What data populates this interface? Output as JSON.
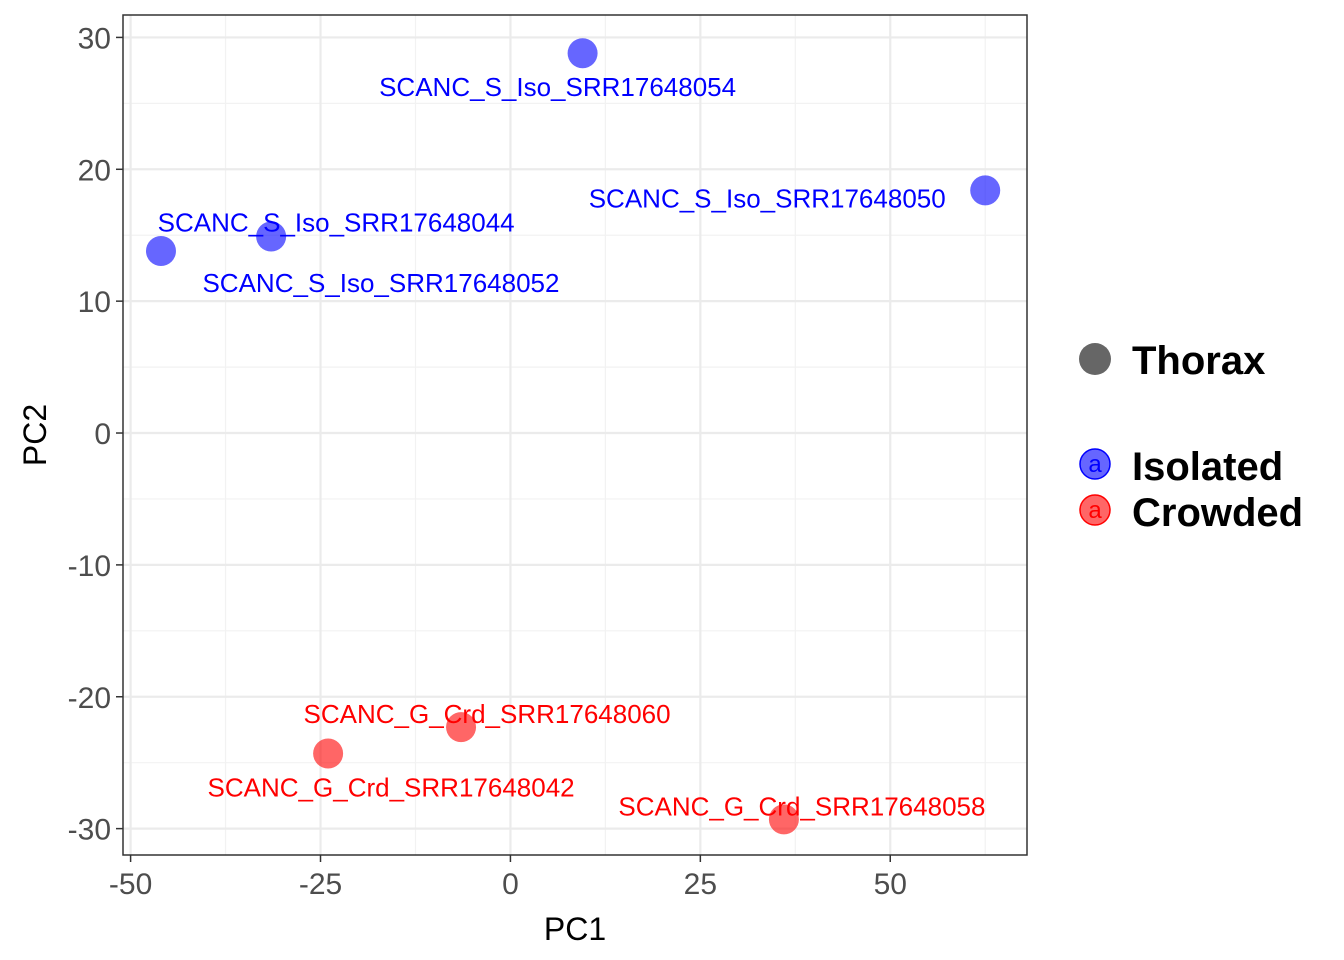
{
  "chart_data": {
    "type": "scatter",
    "title": "",
    "xlabel": "PC1",
    "ylabel": "PC2",
    "xlim": [
      -51,
      68
    ],
    "ylim": [
      -32,
      31.7
    ],
    "x_ticks": [
      -50,
      -25,
      0,
      25,
      50
    ],
    "x_tick_labels": [
      "-50",
      "-25",
      "0",
      "25",
      "50"
    ],
    "y_ticks": [
      -30,
      -20,
      -10,
      0,
      10,
      20,
      30
    ],
    "y_tick_labels": [
      "-30",
      "-20",
      "-10",
      "0",
      "10",
      "20",
      "30"
    ],
    "grid": true,
    "legend_placement": "right",
    "legend": {
      "shape_title": "Thorax",
      "shape_color": "#666666",
      "key_glyph": "a",
      "groups": [
        {
          "name": "Isolated",
          "color": "#0000ff"
        },
        {
          "name": "Crowded",
          "color": "#ff0000"
        }
      ]
    },
    "series": [
      {
        "name": "Isolated",
        "color": "#0000ff",
        "points": [
          {
            "label": "SCANC_S_Iso_SRR17648054",
            "x": 9.5,
            "y": 28.8
          },
          {
            "label": "SCANC_S_Iso_SRR17648050",
            "x": 62.5,
            "y": 18.4
          },
          {
            "label": "SCANC_S_Iso_SRR17648044",
            "x": -31.5,
            "y": 14.9
          },
          {
            "label": "SCANC_S_Iso_SRR17648052",
            "x": -46,
            "y": 13.8
          }
        ]
      },
      {
        "name": "Crowded",
        "color": "#ff0000",
        "points": [
          {
            "label": "SCANC_G_Crd_SRR17648060",
            "x": -6.5,
            "y": -22.3
          },
          {
            "label": "SCANC_G_Crd_SRR17648042",
            "x": -24,
            "y": -24.3
          },
          {
            "label": "SCANC_G_Crd_SRR17648058",
            "x": 36,
            "y": -29.3
          }
        ]
      }
    ]
  }
}
